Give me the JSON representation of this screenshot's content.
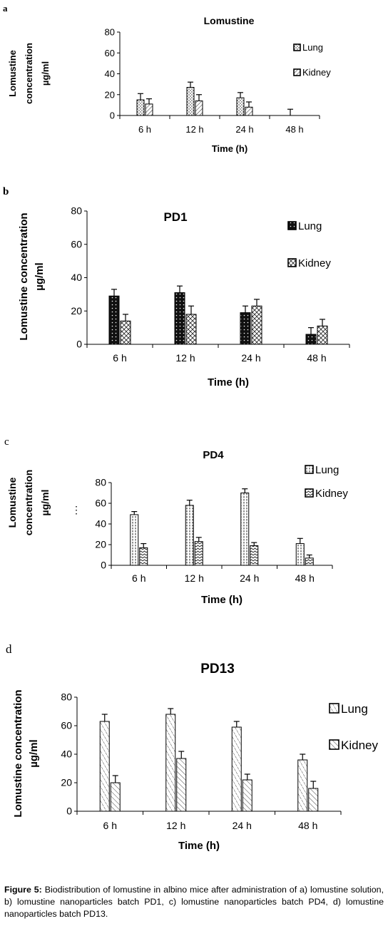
{
  "chart_data": [
    {
      "type": "bar",
      "panel_letter": "a",
      "title": "Lomustine",
      "xlabel": "Time (h)",
      "ylabel": [
        "Lomustine",
        "concentration",
        "µg/ml"
      ],
      "categories": [
        "6 h",
        "12 h",
        "24 h",
        "48 h"
      ],
      "ylim": [
        0,
        80
      ],
      "yticks": [
        0,
        20,
        40,
        60,
        80
      ],
      "legend_position": "right",
      "series": [
        {
          "name": "Lung",
          "values": [
            15,
            27,
            17,
            0
          ],
          "errors": [
            6,
            5,
            5,
            6
          ]
        },
        {
          "name": "Kidney",
          "values": [
            11,
            14,
            8,
            0
          ],
          "errors": [
            5,
            6,
            5,
            0
          ]
        }
      ]
    },
    {
      "type": "bar",
      "panel_letter": "b",
      "title": "PD1",
      "xlabel": "Time (h)",
      "ylabel": [
        "Lomustine concentration",
        "µg/ml"
      ],
      "categories": [
        "6 h",
        "12 h",
        "24 h",
        "48 h"
      ],
      "ylim": [
        0,
        80
      ],
      "yticks": [
        0,
        20,
        40,
        60,
        80
      ],
      "legend_position": "right",
      "series": [
        {
          "name": "Lung",
          "values": [
            29,
            31,
            19,
            6
          ],
          "errors": [
            4,
            4,
            4,
            4
          ]
        },
        {
          "name": "Kidney",
          "values": [
            14,
            18,
            23,
            11
          ],
          "errors": [
            4,
            5,
            4,
            4
          ]
        }
      ]
    },
    {
      "type": "bar",
      "panel_letter": "c",
      "title": "PD4",
      "xlabel": "Time (h)",
      "ylabel": [
        "Lomustine",
        "concentration",
        "µg/ml"
      ],
      "side_mark": "⋮",
      "categories": [
        "6 h",
        "12 h",
        "24 h",
        "48 h"
      ],
      "ylim": [
        0,
        80
      ],
      "yticks": [
        0,
        20,
        40,
        60,
        80
      ],
      "legend_position": "right",
      "series": [
        {
          "name": "Lung",
          "values": [
            49,
            58,
            70,
            21
          ],
          "errors": [
            3,
            5,
            4,
            5
          ]
        },
        {
          "name": "Kidney",
          "values": [
            17,
            23,
            19,
            7
          ],
          "errors": [
            4,
            4,
            3,
            3
          ]
        }
      ]
    },
    {
      "type": "bar",
      "panel_letter": "d",
      "title": "PD13",
      "xlabel": "Time (h)",
      "ylabel": [
        "Lomustine concentration",
        "µg/ml"
      ],
      "categories": [
        "6 h",
        "12 h",
        "24 h",
        "48 h"
      ],
      "ylim": [
        0,
        80
      ],
      "yticks": [
        0,
        20,
        40,
        60,
        80
      ],
      "legend_position": "right",
      "series": [
        {
          "name": "Lung",
          "values": [
            63,
            68,
            59,
            36
          ],
          "errors": [
            5,
            4,
            4,
            4
          ]
        },
        {
          "name": "Kidney",
          "values": [
            20,
            37,
            22,
            16
          ],
          "errors": [
            5,
            5,
            4,
            5
          ]
        }
      ]
    }
  ],
  "caption": {
    "label": "Figure 5:",
    "text": "Biodistribution of lomustine in albino mice after administration of a) lomustine solution, b) lomustine nanoparticles batch PD1, c) lomustine nanoparticles batch PD4, d) lomustine nanoparticles batch PD13."
  }
}
